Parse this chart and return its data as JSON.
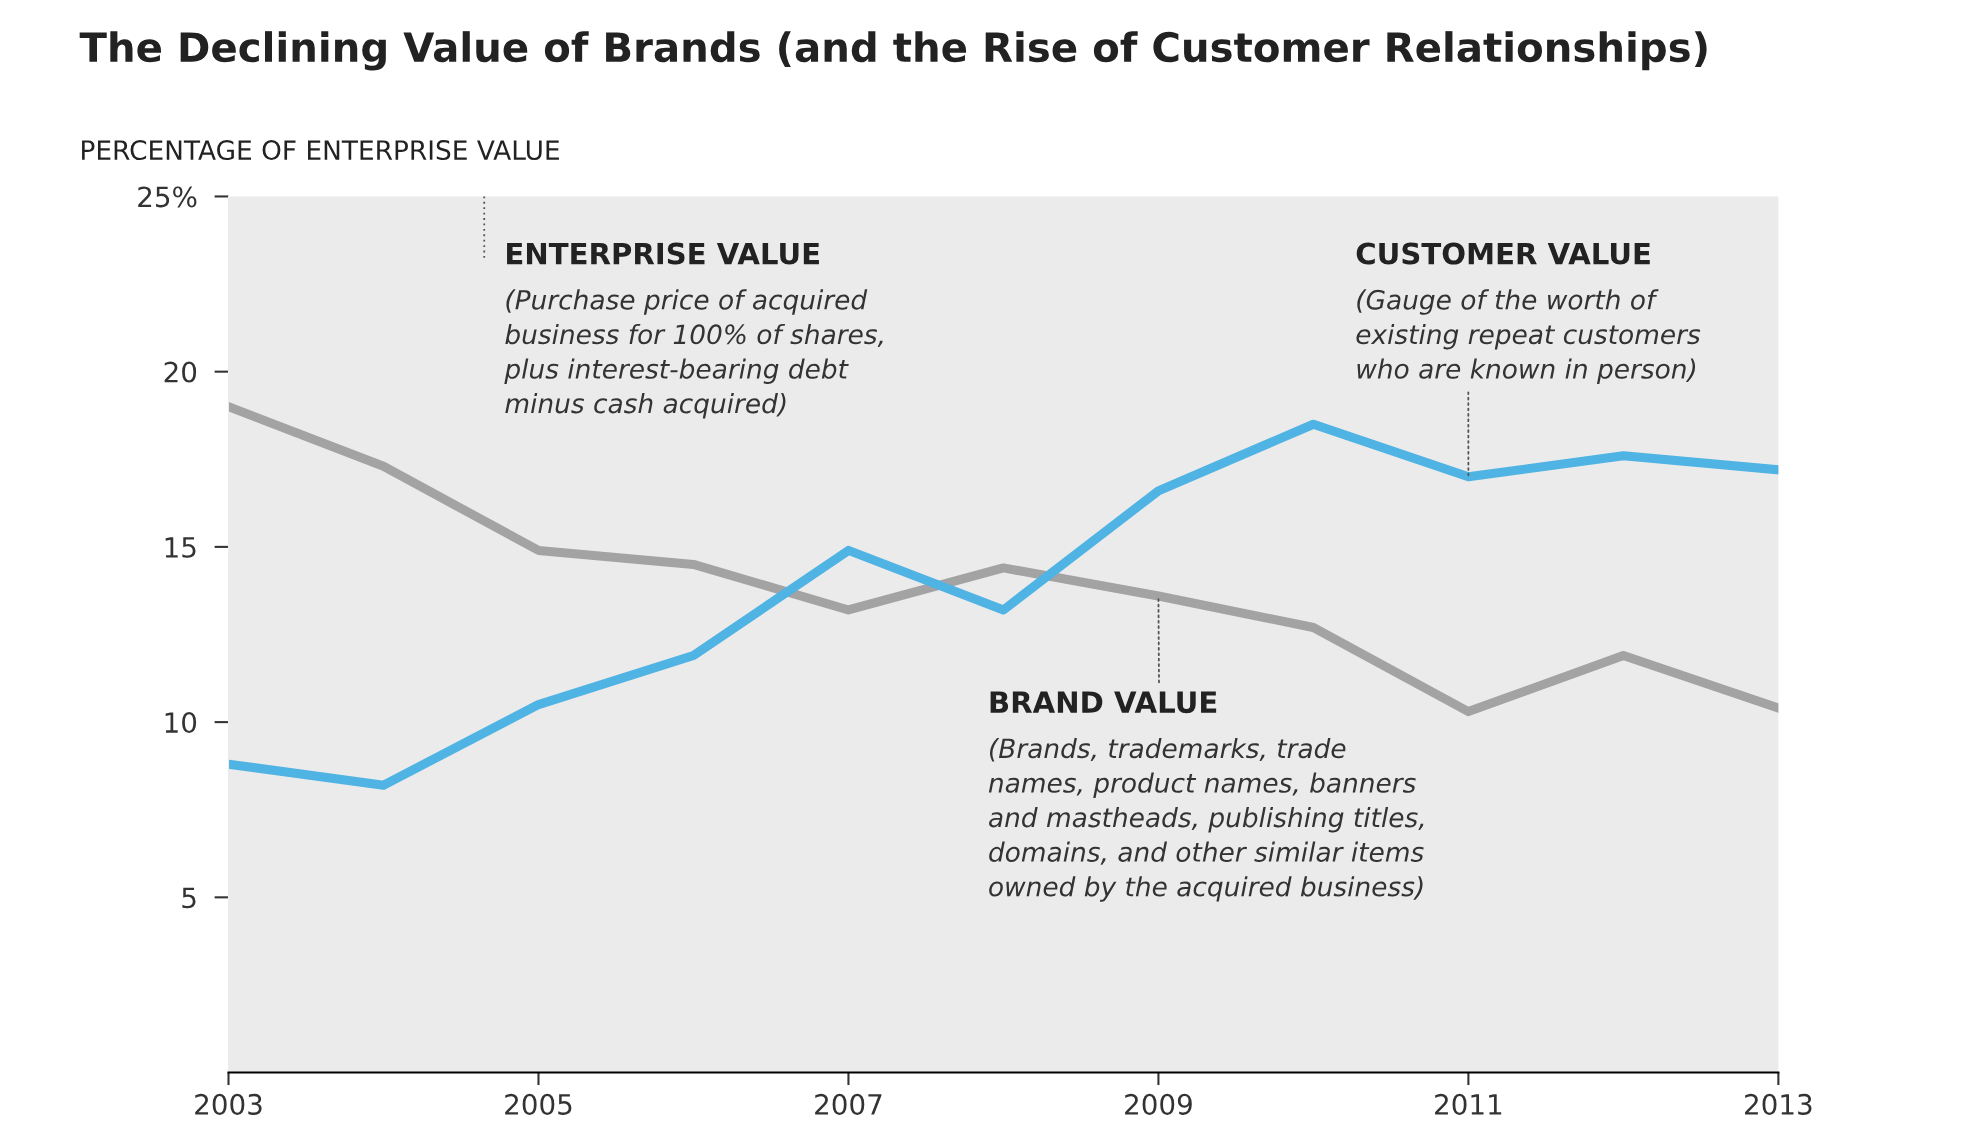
{
  "chart_data": {
    "type": "line",
    "title": "The Declining Value of Brands (and the Rise of Customer Relationships)",
    "ylabel": "PERCENTAGE OF ENTERPRISE VALUE",
    "x": [
      2003,
      2004,
      2005,
      2006,
      2007,
      2008,
      2009,
      2010,
      2011,
      2012,
      2013
    ],
    "series": [
      {
        "color": "#a3a3a3",
        "values": [
          19.0,
          17.3,
          14.9,
          14.5,
          13.2,
          14.4,
          13.6,
          12.7,
          10.3,
          11.9,
          10.4
        ]
      },
      {
        "color": "#4fb3e3",
        "values": [
          8.8,
          8.2,
          10.5,
          11.9,
          14.9,
          13.2,
          16.6,
          18.5,
          17.0,
          17.6,
          17.2
        ]
      }
    ],
    "xlim": [
      2003,
      2013
    ],
    "xticks": [
      2003,
      2005,
      2007,
      2009,
      2011,
      2013
    ],
    "ylim": [
      0,
      25
    ],
    "yticks": [
      5,
      10,
      15,
      20,
      {
        "value": 25,
        "label": "25%"
      }
    ],
    "grid": false,
    "marker": "none",
    "line_style": "solid",
    "annotations": [
      "ENTERPRISE VALUE",
      "(Purchase price of acquired\nbusiness for 100% of shares,\nplus interest-bearing debt\nminus cash acquired)",
      {
        "text": "BRAND VALUE",
        "x": 2009,
        "y": 13.6
      },
      "(Brands, trademarks, trade\nnames, product names, banners\nand mastheads, publishing titles,\ndomains, and other similar items\nowned by the acquired business)",
      "CUSTOMER VALUE",
      {
        "text": "(Gauge of the worth of\nexisting repeat customers\nwho are known in person)",
        "x": 2011,
        "y": 17.0
      }
    ]
  }
}
